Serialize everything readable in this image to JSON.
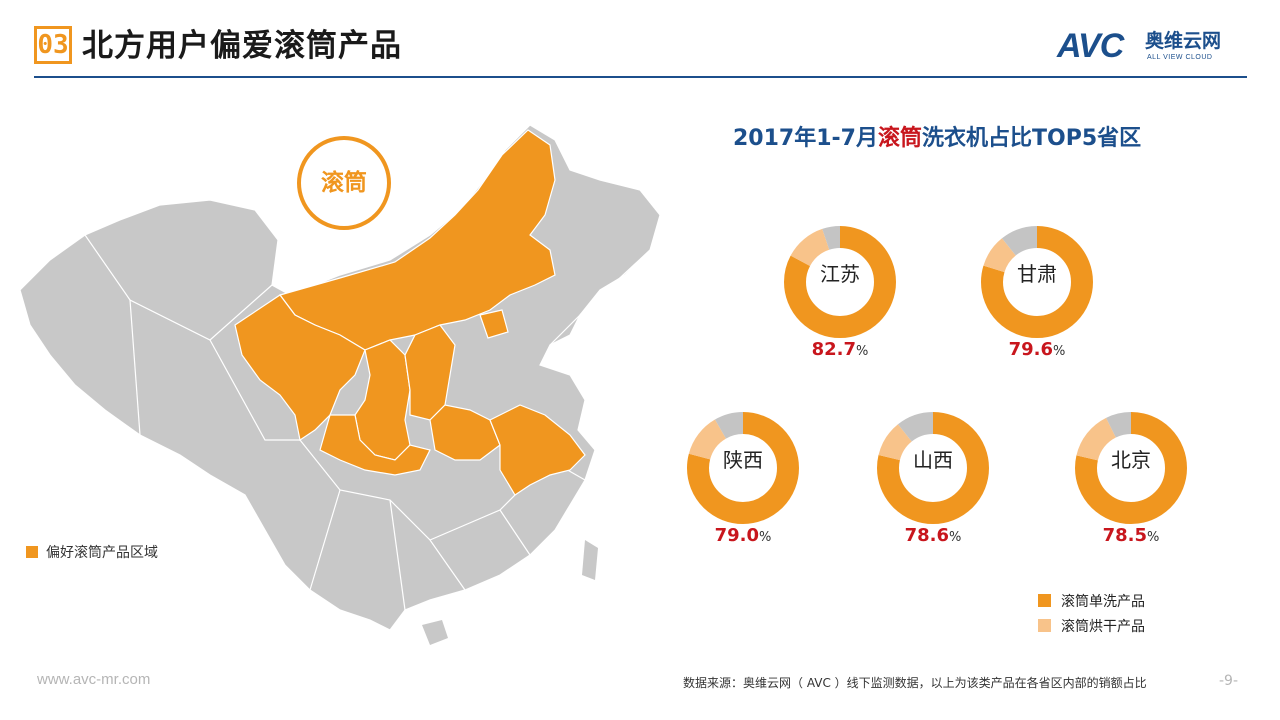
{
  "header": {
    "section_number": "03",
    "title": "北方用户偏爱滚筒产品",
    "logo_avc": "AVC",
    "logo_cn": "奥维云网",
    "logo_en": "ALL VIEW CLOUD"
  },
  "map": {
    "badge": "滚筒",
    "legend": "偏好滚筒产品区域",
    "highlight_color": "#f0961f",
    "base_color": "#c8c8c8"
  },
  "chart_data": {
    "type": "pie",
    "variant": "donut",
    "title_prefix": "2017年1-7月",
    "title_highlight": "滚筒",
    "title_suffix": "洗衣机占比TOP5省区",
    "categories": [
      "江苏",
      "甘肃",
      "陕西",
      "山西",
      "北京"
    ],
    "series": [
      {
        "name": "滚筒单洗产品",
        "color": "#f0961f",
        "values": [
          82.7,
          79.6,
          79.0,
          78.6,
          78.5
        ]
      },
      {
        "name": "滚筒烘干产品",
        "color": "#f8c38a",
        "values": [
          12.0,
          9.5,
          12.5,
          10.5,
          14.0
        ]
      },
      {
        "name": "",
        "color": "#c4c4c4",
        "values": [
          5.3,
          10.9,
          8.5,
          10.9,
          7.5
        ]
      }
    ],
    "labels": [
      "82.7",
      "79.6",
      "79.0",
      "78.6",
      "78.5"
    ],
    "unit": "%",
    "legend_position": "bottom-right",
    "legend": [
      "滚筒单洗产品",
      "滚筒烘干产品"
    ]
  },
  "footer": {
    "url": "www.avc-mr.com",
    "source": "数据来源：奥维云网（ AVC ）线下监测数据，以上为该类产品在各省区内部的销额占比",
    "page": "-9-"
  }
}
